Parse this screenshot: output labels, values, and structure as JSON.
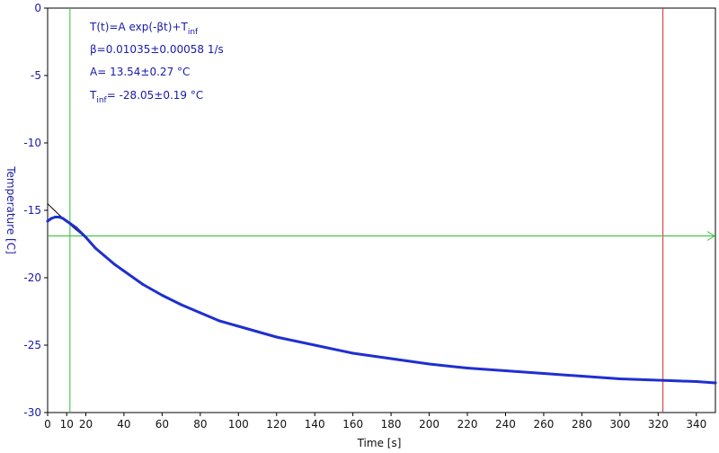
{
  "chart_data": {
    "type": "line",
    "xlabel": "Time [s]",
    "ylabel": "Temperature [C]",
    "xlim": [
      0,
      350
    ],
    "ylim": [
      -30,
      0
    ],
    "x_ticks": [
      0,
      10,
      20,
      40,
      60,
      80,
      100,
      120,
      140,
      160,
      180,
      200,
      220,
      240,
      260,
      280,
      300,
      320,
      340
    ],
    "y_ticks": [
      0,
      -5,
      -10,
      -15,
      -20,
      -25,
      -30
    ],
    "annotations": {
      "model_main": "T(t)=A exp(-βt)+T",
      "model_sub": "inf",
      "beta": "β=0.01035±0.00058 1/s",
      "amp": "A= 13.54±0.27 °C",
      "tinf_main": "T",
      "tinf_sub": "inf",
      "tinf_rest": "= -28.05±0.19 °C"
    },
    "cursors": {
      "green_x": 11.7,
      "red_x": 322.5,
      "horizontal_y": -16.9
    },
    "fit": {
      "A": 13.54,
      "beta": 0.01035,
      "T_inf": -28.05
    },
    "series": [
      {
        "color": "#1f2fd0",
        "x": [
          0,
          2,
          4,
          6,
          8,
          10,
          12,
          15,
          20,
          25,
          30,
          35,
          40,
          50,
          60,
          70,
          80,
          90,
          100,
          120,
          140,
          160,
          180,
          200,
          220,
          240,
          260,
          280,
          300,
          320,
          340,
          350
        ],
        "y": [
          -15.8,
          -15.6,
          -15.5,
          -15.5,
          -15.6,
          -15.8,
          -16.0,
          -16.3,
          -17.0,
          -17.8,
          -18.4,
          -19.0,
          -19.5,
          -20.5,
          -21.3,
          -22.0,
          -22.6,
          -23.2,
          -23.6,
          -24.4,
          -25.0,
          -25.6,
          -26.0,
          -26.4,
          -26.7,
          -26.9,
          -27.1,
          -27.3,
          -27.5,
          -27.6,
          -27.7,
          -27.8
        ]
      }
    ],
    "colors": {
      "series": "#1f2fd0",
      "text": "#1a1aa8",
      "fit": "#000000",
      "green_cursor": "#2fbf2f",
      "red_cursor": "#d42a2a",
      "frame": "#000000"
    }
  }
}
